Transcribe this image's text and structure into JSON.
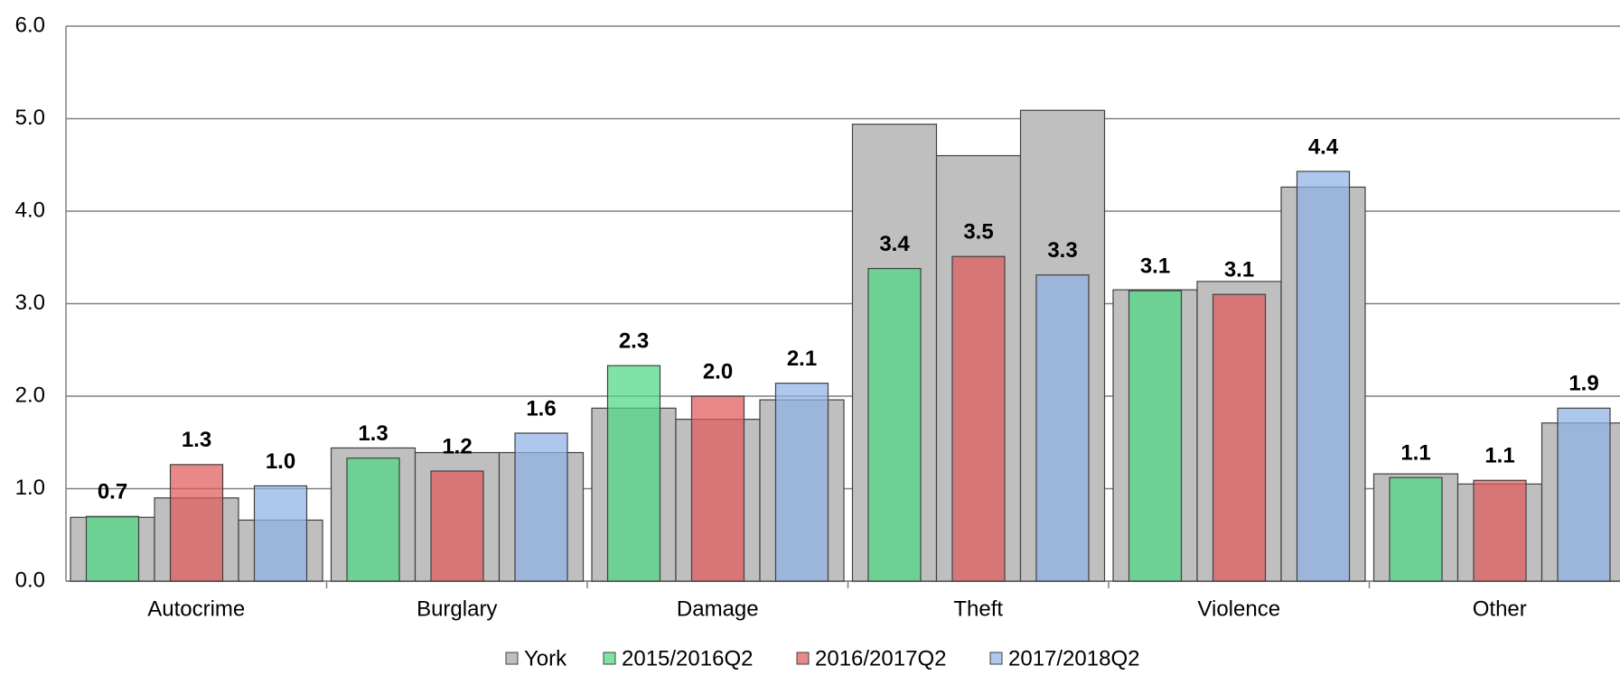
{
  "chart_data": {
    "type": "bar",
    "categories": [
      "Autocrime",
      "Burglary",
      "Damage",
      "Theft",
      "Violence",
      "Other"
    ],
    "series": [
      {
        "name": "York",
        "color": "#bfbfbf",
        "values": [
          [
            0.69,
            0.9,
            0.66
          ],
          [
            1.44,
            1.39,
            1.39
          ],
          [
            1.87,
            1.75,
            1.96
          ],
          [
            4.94,
            4.6,
            5.09
          ],
          [
            3.15,
            3.24,
            4.26
          ],
          [
            1.16,
            1.05,
            1.71
          ]
        ]
      },
      {
        "name": "2015/2016Q2",
        "color": "#4fd884",
        "values": [
          0.7,
          1.33,
          2.33,
          3.38,
          3.14,
          1.12
        ],
        "value_labels": [
          "0.7",
          "1.3",
          "2.3",
          "3.4",
          "3.1",
          "1.1"
        ]
      },
      {
        "name": "2016/2017Q2",
        "color": "#e05a5a",
        "values": [
          1.26,
          1.19,
          2.0,
          3.51,
          3.1,
          1.09
        ],
        "value_labels": [
          "1.3",
          "1.2",
          "2.0",
          "3.5",
          "3.1",
          "1.1"
        ]
      },
      {
        "name": "2017/2018Q2",
        "color": "#8fb3e6",
        "values": [
          1.03,
          1.6,
          2.14,
          3.31,
          4.43,
          1.87
        ],
        "value_labels": [
          "1.0",
          "1.6",
          "2.1",
          "3.3",
          "4.4",
          "1.9"
        ]
      }
    ],
    "ylim": [
      0,
      6
    ],
    "yticks": [
      {
        "value": 0,
        "label": "0.0"
      },
      {
        "value": 1,
        "label": "1.0"
      },
      {
        "value": 2,
        "label": "2.0"
      },
      {
        "value": 3,
        "label": "3.0"
      },
      {
        "value": 4,
        "label": "4.0"
      },
      {
        "value": 5,
        "label": "5.0"
      },
      {
        "value": 6,
        "label": "6.0"
      }
    ],
    "grid": true,
    "legend": "bottom"
  }
}
